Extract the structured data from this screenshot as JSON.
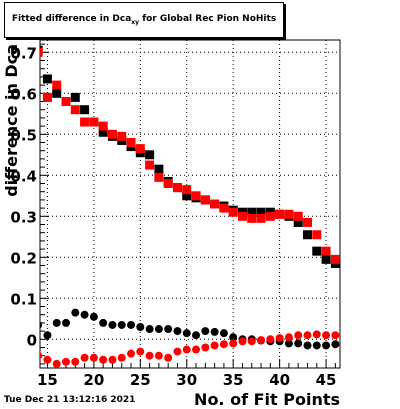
{
  "title": {
    "prefix": "Fitted difference in Dca",
    "subscript": "xy",
    "suffix": " for Global Rec Pion NoHits"
  },
  "timestamp": "Tue Dec 21 13:12:16 2021",
  "chart_data": {
    "type": "scatter",
    "xlabel": "No. of Fit Points",
    "ylabel": "difference in Dca",
    "xlim": [
      14.2,
      46.5
    ],
    "ylim": [
      -0.07,
      0.73
    ],
    "x_ticks": [
      15,
      20,
      25,
      30,
      35,
      40,
      45
    ],
    "y_ticks": [
      0,
      0.1,
      0.2,
      0.3,
      0.4,
      0.5,
      0.6,
      0.7
    ],
    "x_tick_labels": [
      "15",
      "20",
      "25",
      "30",
      "35",
      "40",
      "45"
    ],
    "y_tick_labels": [
      "0",
      "0.1",
      "0.2",
      "0.3",
      "0.4",
      "0.5",
      "0.6",
      "0.7"
    ],
    "grid": true,
    "series": [
      {
        "marker": "square",
        "color": "#000000",
        "x": [
          14,
          15,
          16,
          17,
          18,
          19,
          20,
          21,
          22,
          23,
          24,
          25,
          26,
          27,
          28,
          29,
          30,
          31,
          32,
          33,
          34,
          35,
          36,
          37,
          38,
          39,
          40,
          41,
          42,
          43,
          44,
          45,
          46
        ],
        "y": [
          0.705,
          0.635,
          0.6,
          0.58,
          0.59,
          0.56,
          0.53,
          0.505,
          0.495,
          0.485,
          0.47,
          0.455,
          0.45,
          0.415,
          0.385,
          0.37,
          0.35,
          0.345,
          0.34,
          0.33,
          0.325,
          0.315,
          0.31,
          0.31,
          0.31,
          0.31,
          0.305,
          0.3,
          0.285,
          0.255,
          0.215,
          0.195,
          0.185
        ]
      },
      {
        "marker": "square",
        "color": "#ff0000",
        "x": [
          14,
          15,
          16,
          17,
          18,
          19,
          20,
          21,
          22,
          23,
          24,
          25,
          26,
          27,
          28,
          29,
          30,
          31,
          32,
          33,
          34,
          35,
          36,
          37,
          38,
          39,
          40,
          41,
          42,
          43,
          44,
          45,
          46
        ],
        "y": [
          0.7,
          0.59,
          0.62,
          0.58,
          0.56,
          0.53,
          0.53,
          0.52,
          0.5,
          0.495,
          0.48,
          0.465,
          0.425,
          0.395,
          0.38,
          0.37,
          0.365,
          0.35,
          0.34,
          0.33,
          0.32,
          0.31,
          0.3,
          0.295,
          0.295,
          0.3,
          0.305,
          0.305,
          0.3,
          0.285,
          0.255,
          0.215,
          0.195
        ]
      },
      {
        "marker": "circle",
        "color": "#000000",
        "x": [
          14,
          15,
          16,
          17,
          18,
          19,
          20,
          21,
          22,
          23,
          24,
          25,
          26,
          27,
          28,
          29,
          30,
          31,
          32,
          33,
          34,
          35,
          36,
          37,
          38,
          39,
          40,
          41,
          42,
          43,
          44,
          45,
          46
        ],
        "y": [
          0.035,
          0.01,
          0.04,
          0.04,
          0.065,
          0.06,
          0.055,
          0.04,
          0.035,
          0.035,
          0.035,
          0.03,
          0.025,
          0.025,
          0.025,
          0.02,
          0.015,
          0.01,
          0.02,
          0.018,
          0.015,
          0.005,
          0.0,
          0.0,
          -0.003,
          -0.005,
          -0.005,
          -0.01,
          -0.01,
          -0.015,
          -0.015,
          -0.015,
          -0.012
        ]
      },
      {
        "marker": "circle",
        "color": "#ff0000",
        "x": [
          14,
          15,
          16,
          17,
          18,
          19,
          20,
          21,
          22,
          23,
          24,
          25,
          26,
          27,
          28,
          29,
          30,
          31,
          32,
          33,
          34,
          35,
          36,
          37,
          38,
          39,
          40,
          41,
          42,
          43,
          44,
          45,
          46
        ],
        "y": [
          -0.04,
          -0.05,
          -0.06,
          -0.055,
          -0.055,
          -0.045,
          -0.045,
          -0.05,
          -0.05,
          -0.045,
          -0.035,
          -0.03,
          -0.04,
          -0.04,
          -0.045,
          -0.03,
          -0.025,
          -0.025,
          -0.02,
          -0.015,
          -0.012,
          -0.01,
          -0.005,
          -0.005,
          -0.002,
          0.0,
          0.003,
          0.005,
          0.01,
          0.01,
          0.012,
          0.01,
          0.01
        ]
      }
    ]
  }
}
